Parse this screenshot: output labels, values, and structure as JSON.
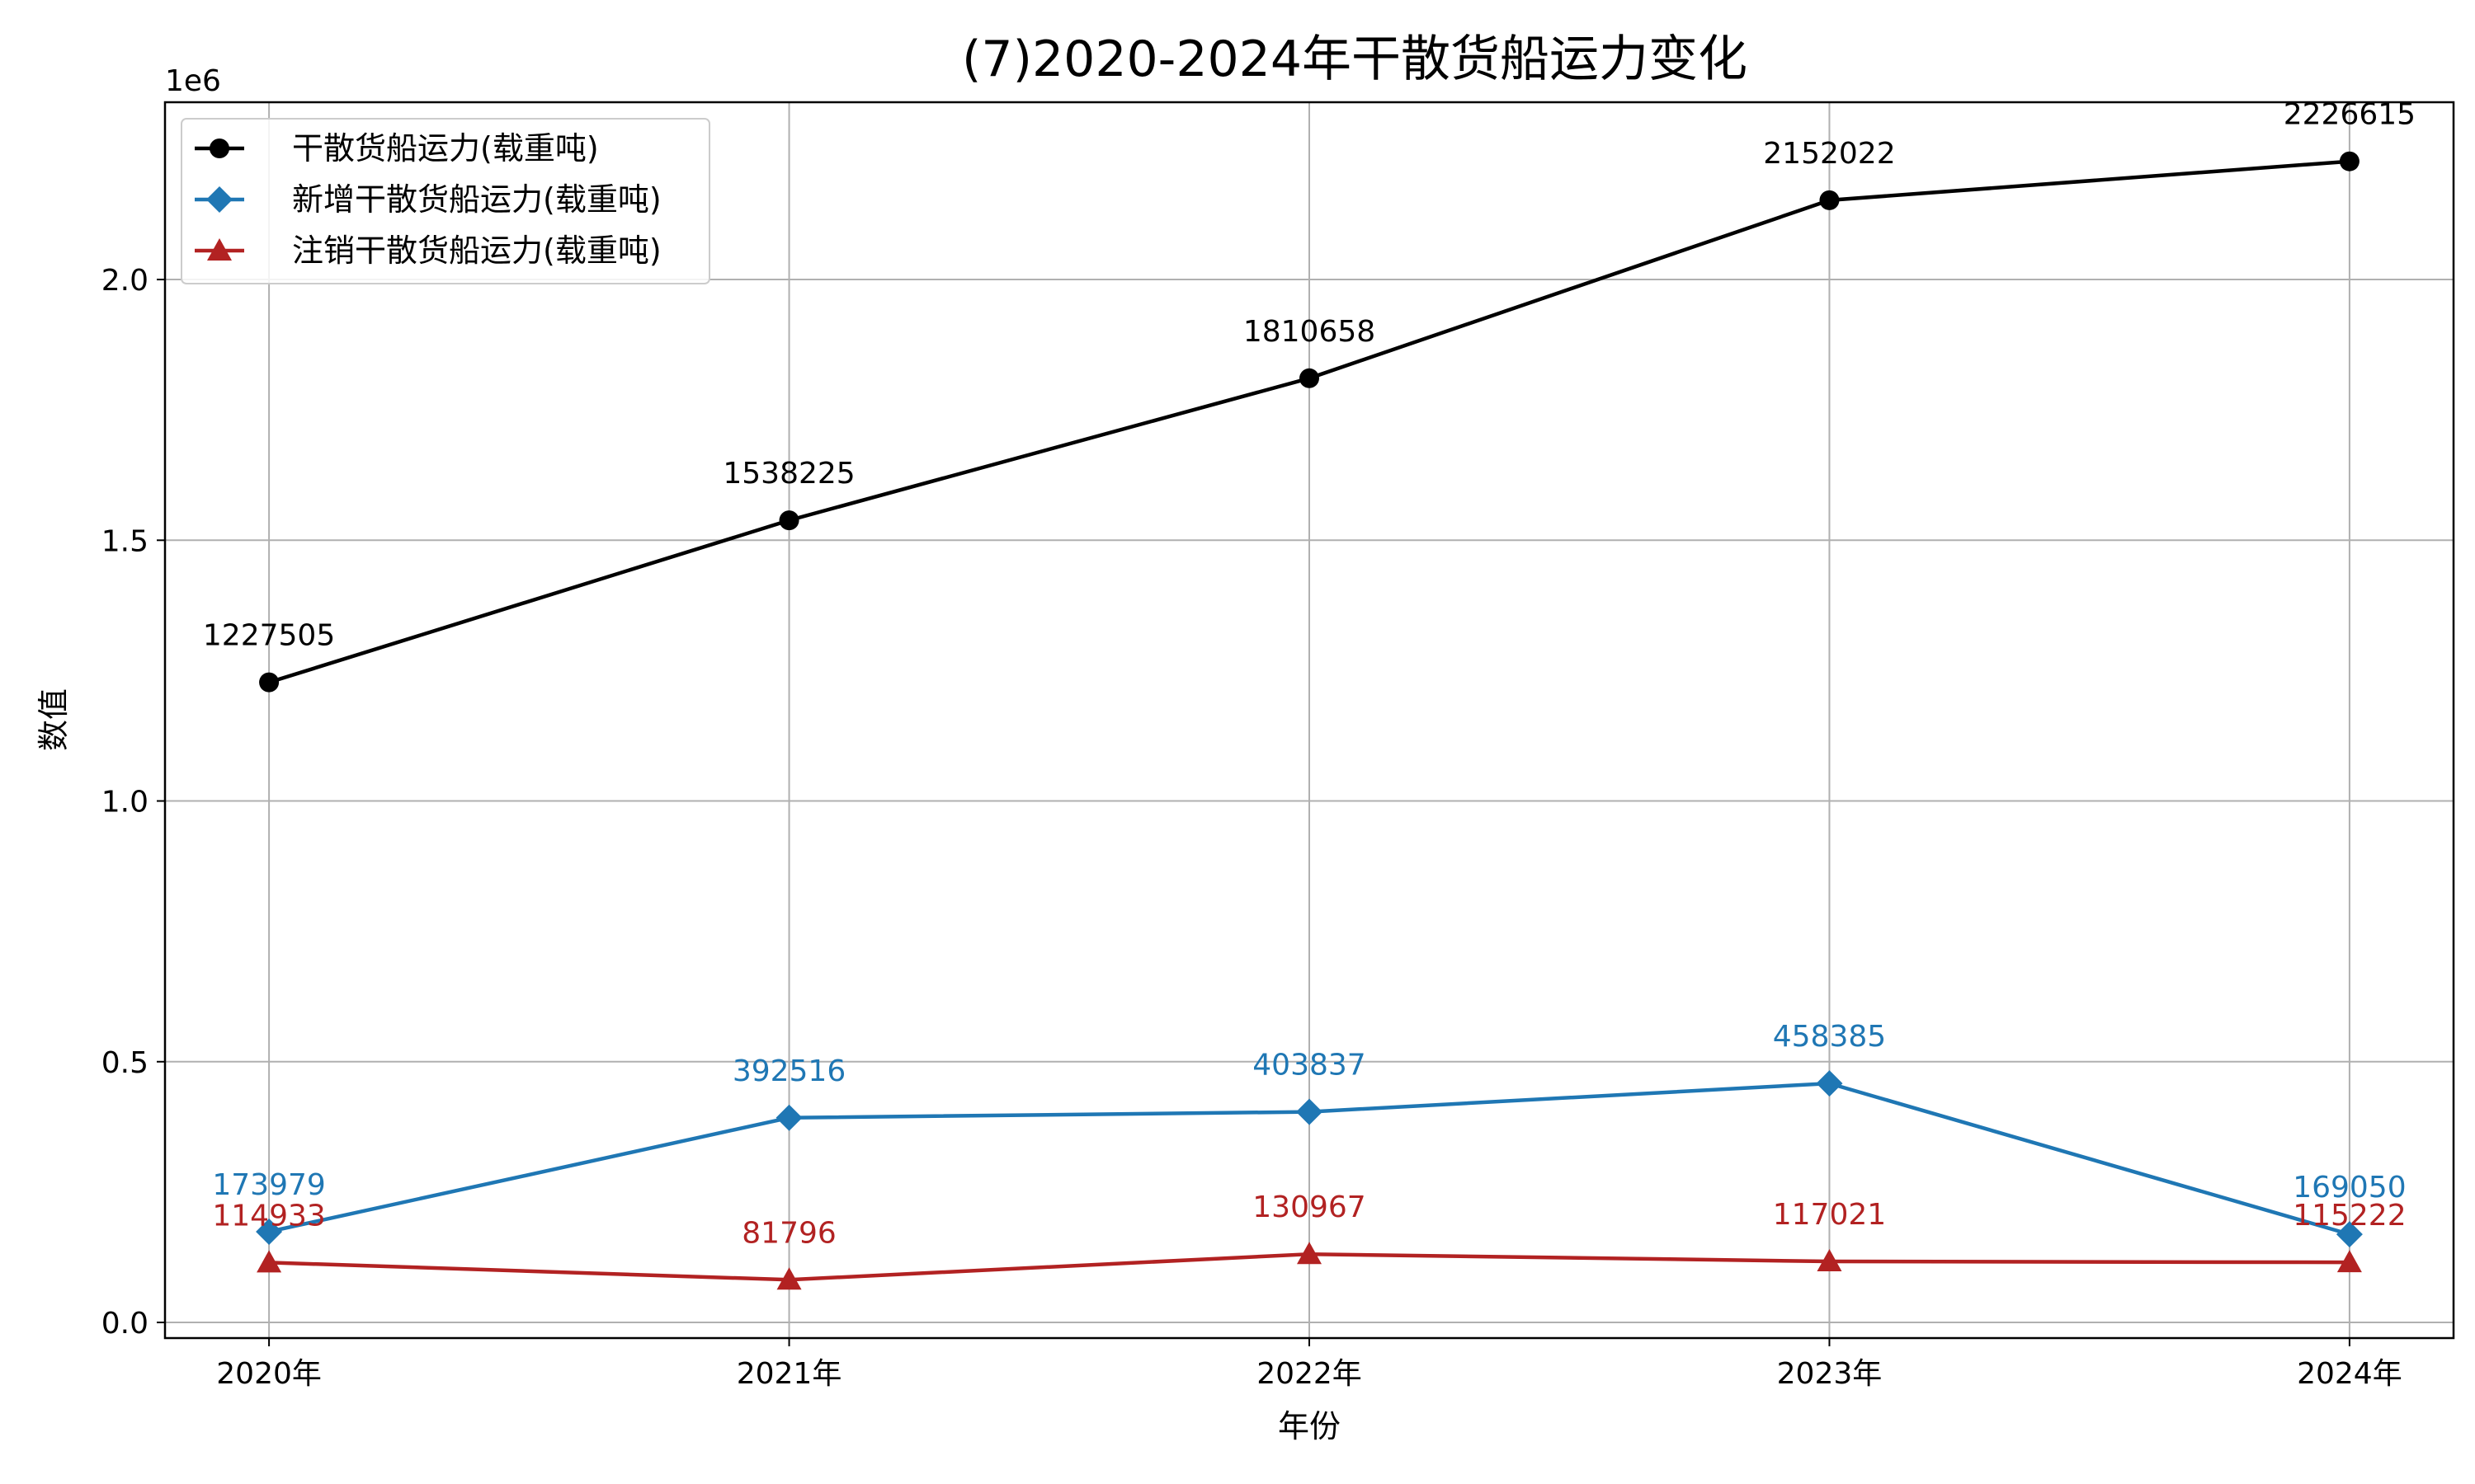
{
  "chart_data": {
    "type": "line",
    "title": "(7)2020-2024年干散货船运力变化",
    "xlabel": "年份",
    "ylabel": "数值",
    "y_scale_label": "1e6",
    "categories": [
      "2020年",
      "2021年",
      "2022年",
      "2023年",
      "2024年"
    ],
    "y_ticks": [
      0.0,
      0.5,
      1.0,
      1.5,
      2.0
    ],
    "y_tick_labels": [
      "0.0",
      "0.5",
      "1.0",
      "1.5",
      "2.0"
    ],
    "ylim": [
      -30000,
      2340000
    ],
    "grid": true,
    "legend_position": "upper-left",
    "series": [
      {
        "name": "干散货船运力(载重吨)",
        "color": "#000000",
        "marker": "circle",
        "values": [
          1227505,
          1538225,
          1810658,
          2152022,
          2226615
        ],
        "labels": [
          "1227505",
          "1538225",
          "1810658",
          "2152022",
          "2226615"
        ]
      },
      {
        "name": "新增干散货船运力(载重吨)",
        "color": "#1f77b4",
        "marker": "diamond",
        "values": [
          173979,
          392516,
          403837,
          458385,
          169050
        ],
        "labels": [
          "173979",
          "392516",
          "403837",
          "458385",
          "169050"
        ]
      },
      {
        "name": "注销干散货船运力(载重吨)",
        "color": "#b22222",
        "marker": "triangle",
        "values": [
          114933,
          81796,
          130967,
          117021,
          115222
        ],
        "labels": [
          "114933",
          "81796",
          "130967",
          "117021",
          "115222"
        ]
      }
    ]
  }
}
